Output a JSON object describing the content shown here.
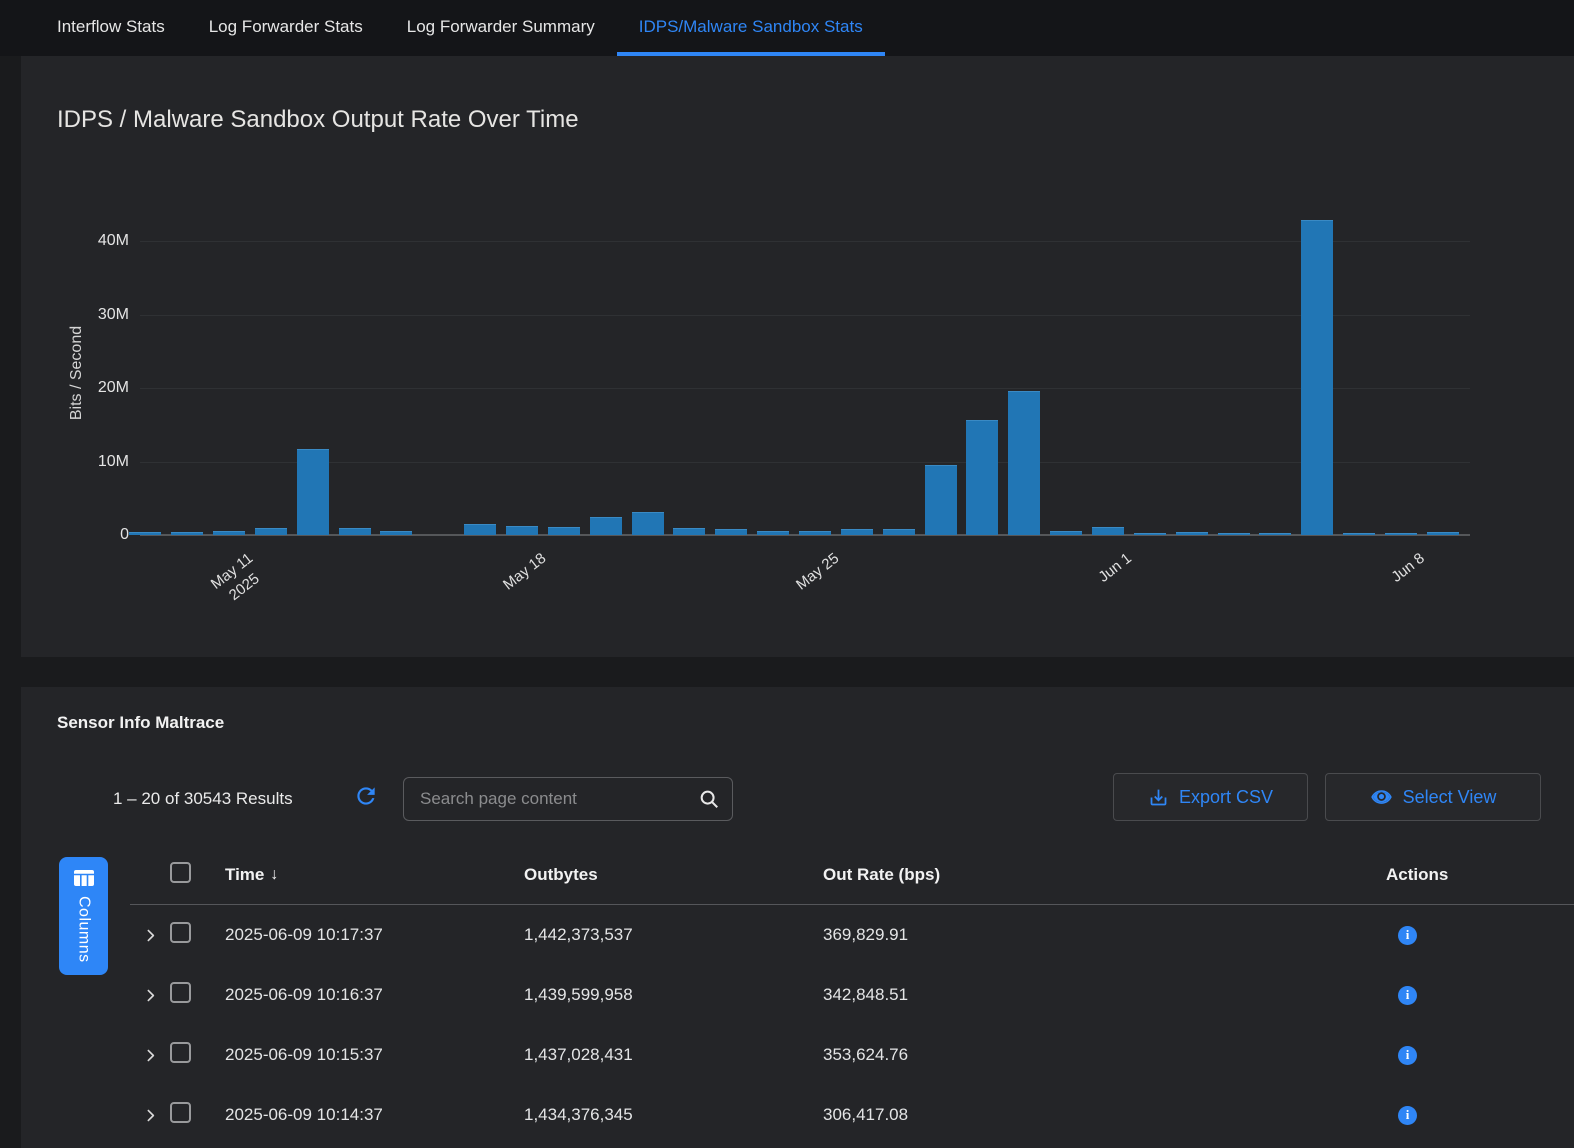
{
  "tabs": {
    "items": [
      {
        "label": "Interflow Stats",
        "active": false
      },
      {
        "label": "Log Forwarder Stats",
        "active": false
      },
      {
        "label": "Log Forwarder Summary",
        "active": false
      },
      {
        "label": "IDPS/Malware Sandbox Stats",
        "active": true
      }
    ]
  },
  "chart_data": {
    "type": "bar",
    "title": "IDPS / Malware Sandbox Output Rate Over Time",
    "ylabel": "Bits / Second",
    "xlabel": "",
    "grid": true,
    "legend": "none",
    "bar_color": "#2176b5",
    "ylim": [
      0,
      45000000
    ],
    "x_dates": [
      "2025-05-09",
      "2025-05-10",
      "2025-05-11",
      "2025-05-12",
      "2025-05-13",
      "2025-05-14",
      "2025-05-15",
      "2025-05-16",
      "2025-05-17",
      "2025-05-18",
      "2025-05-19",
      "2025-05-20",
      "2025-05-21",
      "2025-05-22",
      "2025-05-23",
      "2025-05-24",
      "2025-05-25",
      "2025-05-26",
      "2025-05-27",
      "2025-05-28",
      "2025-05-29",
      "2025-05-30",
      "2025-05-31",
      "2025-06-01",
      "2025-06-02",
      "2025-06-03",
      "2025-06-04",
      "2025-06-05",
      "2025-06-06",
      "2025-06-07",
      "2025-06-08",
      "2025-06-09"
    ],
    "values_bps": [
      400000,
      400000,
      600000,
      900000,
      11700000,
      900000,
      500000,
      0,
      1500000,
      1200000,
      1100000,
      2400000,
      3200000,
      1000000,
      800000,
      600000,
      550000,
      800000,
      800000,
      9500000,
      15700000,
      19600000,
      600000,
      1100000,
      250000,
      350000,
      200000,
      150000,
      42900000,
      300000,
      300000,
      350000
    ],
    "yticks": [
      {
        "value": 0,
        "label": "0"
      },
      {
        "value": 10000000,
        "label": "10M"
      },
      {
        "value": 20000000,
        "label": "20M"
      },
      {
        "value": 30000000,
        "label": "30M"
      },
      {
        "value": 40000000,
        "label": "40M"
      }
    ],
    "xticks": [
      {
        "index": 2,
        "label": "May 11",
        "sublabel": "2025"
      },
      {
        "index": 9,
        "label": "May 18",
        "sublabel": ""
      },
      {
        "index": 16,
        "label": "May 25",
        "sublabel": ""
      },
      {
        "index": 23,
        "label": "Jun 1",
        "sublabel": ""
      },
      {
        "index": 30,
        "label": "Jun 8",
        "sublabel": ""
      }
    ]
  },
  "table": {
    "section_title": "Sensor Info Maltrace",
    "results_text": "1 – 20 of 30543 Results",
    "search_placeholder": "Search page content",
    "export_label": "Export CSV",
    "select_view_label": "Select View",
    "columns_label": "Columns",
    "col_time": "Time",
    "sort_arrow": "↓",
    "col_outbytes": "Outbytes",
    "col_outrate": "Out Rate (bps)",
    "col_actions": "Actions",
    "rows": [
      {
        "time": "2025-06-09 10:17:37",
        "outbytes": "1,442,373,537",
        "outrate": "369,829.91"
      },
      {
        "time": "2025-06-09 10:16:37",
        "outbytes": "1,439,599,958",
        "outrate": "342,848.51"
      },
      {
        "time": "2025-06-09 10:15:37",
        "outbytes": "1,437,028,431",
        "outrate": "353,624.76"
      },
      {
        "time": "2025-06-09 10:14:37",
        "outbytes": "1,434,376,345",
        "outrate": "306,417.08"
      }
    ]
  },
  "colors": {
    "accent_blue": "#2f86f6",
    "bar_blue": "#2176b5",
    "panel_bg": "#242528",
    "page_bg": "#1a1b1d"
  }
}
